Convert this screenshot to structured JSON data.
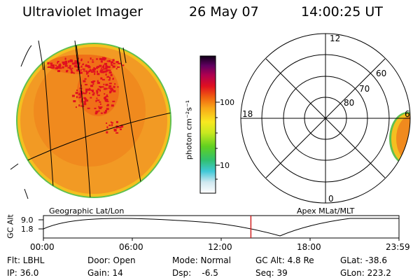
{
  "header": {
    "instrument": "Ultraviolet Imager",
    "date": "26 May 07",
    "time": "14:00:25 UT"
  },
  "colorbar": {
    "unit_label": "photon cm⁻²s⁻¹",
    "tick_100": "100",
    "tick_10": "10"
  },
  "polar_plot": {
    "mlt_top": "12",
    "mlt_left": "18",
    "mlt_right": "6",
    "mlt_bottom": "0",
    "lat_60": "60",
    "lat_70": "70",
    "lat_80": "80"
  },
  "panel_labels": {
    "geographic": "Geographic Lat/Lon",
    "apex": "Apex MLat/MLT"
  },
  "timeline": {
    "ylabel": "GC Alt",
    "y_tick_high": "9.0",
    "y_tick_low": "1.8",
    "x_ticks": [
      "00:00",
      "06:00",
      "12:00",
      "18:00",
      "23:59"
    ],
    "current_time_fraction": 0.5835
  },
  "status": {
    "filter": "Flt: LBHL",
    "ip": "IP: 36.0",
    "door": "Door: Open",
    "gain": "Gain: 14",
    "mode": "Mode: Normal",
    "dsp": "Dsp:    -6.5",
    "gc_alt": "GC Alt: 4.8 Re",
    "seq": "Seq: 39",
    "glat": "GLat: -38.6",
    "glon": "GLon: 223.2"
  },
  "colors": {
    "disk_base": "#f08a1e",
    "disk_edge": "#f4c020",
    "disk_rim": "#60c050",
    "hot_red": "#e01020",
    "time_marker": "#d02020"
  }
}
